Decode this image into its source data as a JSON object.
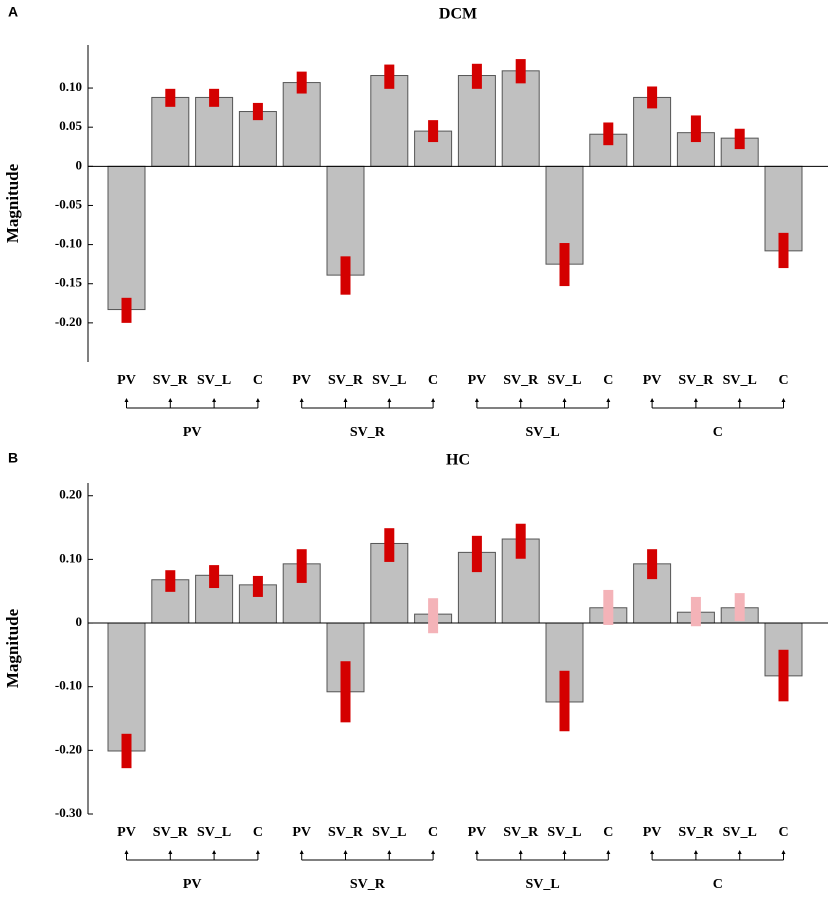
{
  "chart_data": [
    {
      "type": "bar",
      "panel": "A",
      "title": "DCM",
      "y_label": "Magnitude",
      "categories": [
        "PV",
        "SV_R",
        "SV_L",
        "C",
        "PV",
        "SV_R",
        "SV_L",
        "C",
        "PV",
        "SV_R",
        "SV_L",
        "C",
        "PV",
        "SV_R",
        "SV_L",
        "C"
      ],
      "groups": [
        "PV",
        "SV_R",
        "SV_L",
        "C"
      ],
      "values": [
        -0.183,
        0.088,
        0.088,
        0.07,
        0.107,
        -0.139,
        0.116,
        0.045,
        0.116,
        0.122,
        -0.125,
        0.041,
        0.088,
        0.043,
        0.036,
        -0.108
      ],
      "error_low": [
        -0.2,
        0.076,
        0.076,
        0.059,
        0.093,
        -0.164,
        0.099,
        0.031,
        0.099,
        0.106,
        -0.153,
        0.027,
        0.074,
        0.031,
        0.022,
        -0.13
      ],
      "error_high": [
        -0.168,
        0.099,
        0.099,
        0.081,
        0.121,
        -0.115,
        0.13,
        0.059,
        0.131,
        0.137,
        -0.098,
        0.056,
        0.102,
        0.065,
        0.048,
        -0.085
      ],
      "color": "#c0c0c0",
      "error_colors": [
        "#d40000",
        "#d40000",
        "#d40000",
        "#d40000",
        "#d40000",
        "#d40000",
        "#d40000",
        "#d40000",
        "#d40000",
        "#d40000",
        "#d40000",
        "#d40000",
        "#d40000",
        "#d40000",
        "#d40000",
        "#d40000"
      ],
      "ylim": [
        -0.25,
        0.155
      ],
      "yticks": [
        {
          "value": 0.1,
          "label": "0.10"
        },
        0.05,
        0,
        -0.05,
        {
          "value": -0.1,
          "label": "-0.10"
        },
        -0.15,
        {
          "value": -0.2,
          "label": "-0.20"
        }
      ]
    },
    {
      "type": "bar",
      "panel": "B",
      "title": "HC",
      "y_label": "Magnitude",
      "categories": [
        "PV",
        "SV_R",
        "SV_L",
        "C",
        "PV",
        "SV_R",
        "SV_L",
        "C",
        "PV",
        "SV_R",
        "SV_L",
        "C",
        "PV",
        "SV_R",
        "SV_L",
        "C"
      ],
      "groups": [
        "PV",
        "SV_R",
        "SV_L",
        "C"
      ],
      "values": [
        -0.201,
        0.068,
        0.075,
        0.06,
        0.093,
        -0.108,
        0.125,
        0.014,
        0.111,
        0.132,
        -0.124,
        0.024,
        0.093,
        0.017,
        0.024,
        -0.083
      ],
      "error_low": [
        -0.228,
        0.049,
        0.055,
        0.041,
        0.063,
        -0.156,
        0.096,
        -0.016,
        0.08,
        0.101,
        -0.17,
        -0.003,
        0.069,
        -0.005,
        0.003,
        -0.123
      ],
      "error_high": [
        -0.174,
        0.083,
        0.091,
        0.074,
        0.116,
        -0.06,
        0.149,
        0.039,
        0.137,
        0.156,
        -0.075,
        0.052,
        0.116,
        0.041,
        0.047,
        -0.042
      ],
      "color": "#c0c0c0",
      "error_colors": [
        "#d40000",
        "#d40000",
        "#d40000",
        "#d40000",
        "#d40000",
        "#d40000",
        "#d40000",
        "#f4b3b8",
        "#d40000",
        "#d40000",
        "#d40000",
        "#f4b3b8",
        "#d40000",
        "#f4b3b8",
        "#f4b3b8",
        "#d40000"
      ],
      "ylim": [
        -0.3,
        0.22
      ],
      "yticks": [
        {
          "value": 0.2,
          "label": "0.20"
        },
        {
          "value": 0.1,
          "label": "0.10"
        },
        0,
        {
          "value": -0.1,
          "label": "-0.10"
        },
        {
          "value": -0.2,
          "label": "-0.20"
        },
        {
          "value": -0.3,
          "label": "-0.30"
        }
      ]
    }
  ]
}
